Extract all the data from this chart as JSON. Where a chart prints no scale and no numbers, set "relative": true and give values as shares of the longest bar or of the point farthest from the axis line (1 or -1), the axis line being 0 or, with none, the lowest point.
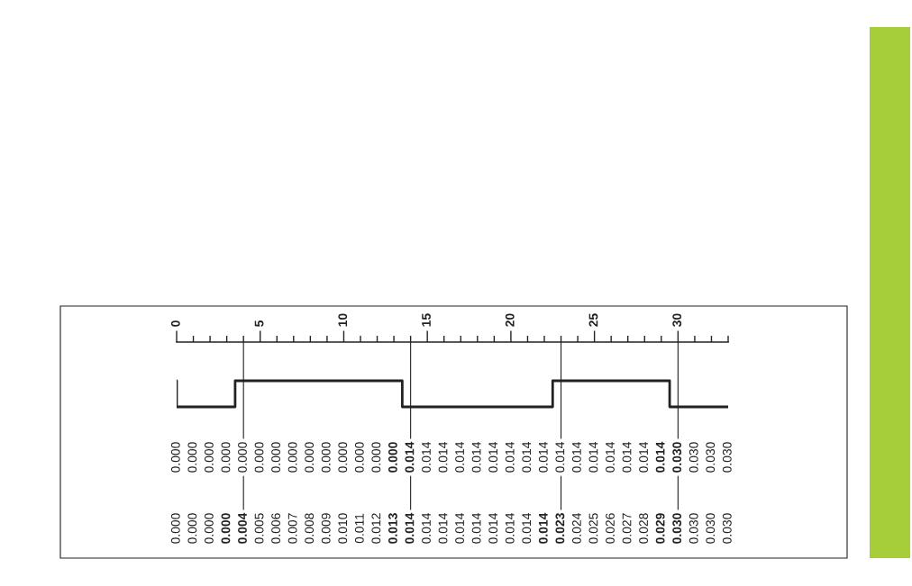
{
  "chart_data": {
    "type": "step",
    "relative": true,
    "tick_labels": "x",
    "x": [
      0,
      0,
      3.5,
      13.5,
      22.5,
      29.5,
      33
    ],
    "series": [
      {
        "color": "#222222",
        "values": [
          1,
          0,
          1,
          0,
          1,
          0,
          0
        ]
      }
    ],
    "xlim": [
      0,
      33
    ],
    "xticks": [
      0,
      5,
      10,
      15,
      20,
      25,
      30
    ],
    "ref_lines": [
      {
        "axis": "x",
        "value": 4,
        "color": "#222222"
      },
      {
        "axis": "x",
        "value": 14,
        "color": "#222222"
      },
      {
        "axis": "x",
        "value": 23,
        "color": "#222222"
      },
      {
        "axis": "x",
        "value": 30,
        "color": "#222222"
      }
    ],
    "annotations": [
      "0.000",
      "0.000",
      "0.000",
      "0.000",
      "0.000",
      "0.000",
      "0.000",
      "0.000",
      "0.000",
      "0.000",
      "0.000",
      "0.000",
      "0.000",
      "0.000",
      "0.014",
      "0.014",
      "0.014",
      "0.014",
      "0.014",
      "0.014",
      "0.014",
      "0.014",
      "0.014",
      "0.014",
      "0.014",
      "0.014",
      "0.014",
      "0.014",
      "0.014",
      "0.014",
      "0.030",
      "0.030",
      "0.030",
      "0.030",
      "0.000",
      "0.000",
      "0.000",
      "0.000",
      "0.004",
      "0.005",
      "0.006",
      "0.007",
      "0.008",
      "0.009",
      "0.010",
      "0.011",
      "0.012",
      "0.013",
      "0.014",
      "0.014",
      "0.014",
      "0.014",
      "0.014",
      "0.014",
      "0.014",
      "0.014",
      "0.014",
      "0.023",
      "0.024",
      "0.025",
      "0.026",
      "0.027",
      "0.028",
      "0.029",
      "0.030",
      "0.030",
      "0.030",
      "0.030"
    ]
  }
}
